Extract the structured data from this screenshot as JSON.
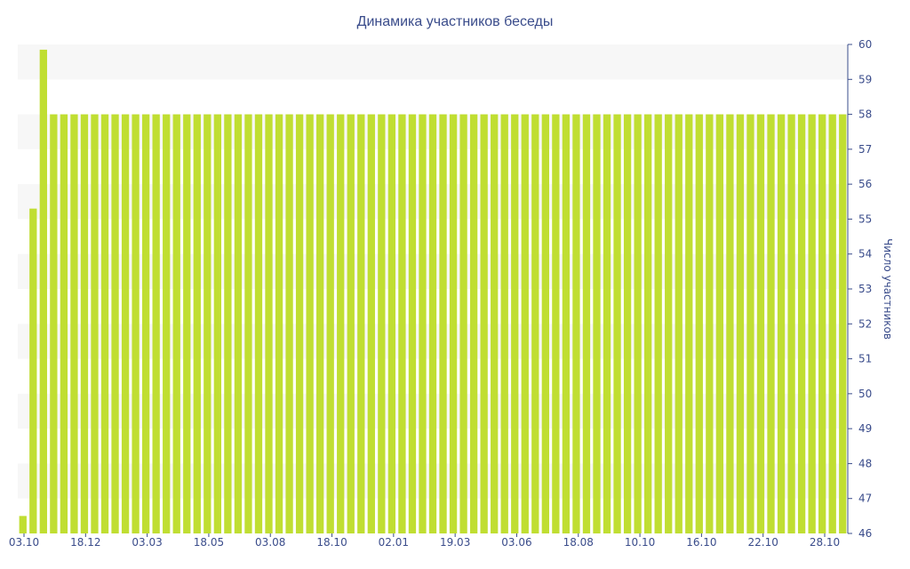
{
  "chart_data": {
    "type": "bar",
    "title": "Динамика участников беседы",
    "ylabel": "Число участников",
    "xlabel": "",
    "ylim": [
      46,
      60
    ],
    "y_ticks": [
      46,
      47,
      48,
      49,
      50,
      51,
      52,
      53,
      54,
      55,
      56,
      57,
      58,
      59,
      60
    ],
    "x_tick_labels": [
      "03.10",
      "18.12",
      "03.03",
      "18.05",
      "03.08",
      "18.10",
      "02.01",
      "19.03",
      "03.06",
      "18.08",
      "10.10",
      "16.10",
      "22.10",
      "28.10"
    ],
    "grid": "alternating horizontal bands",
    "y_axis_position": "right",
    "bar_color": "#c0de32",
    "values": [
      46.5,
      55.3,
      59.85,
      58,
      58,
      58,
      58,
      58,
      58,
      58,
      58,
      58,
      58,
      58,
      58,
      58,
      58,
      58,
      58,
      58,
      58,
      58,
      58,
      58,
      58,
      58,
      58,
      58,
      58,
      58,
      58,
      58,
      58,
      58,
      58,
      58,
      58,
      58,
      58,
      58,
      58,
      58,
      58,
      58,
      58,
      58,
      58,
      58,
      58,
      58,
      58,
      58,
      58,
      58,
      58,
      58,
      58,
      58,
      58,
      58,
      58,
      58,
      58,
      58,
      58,
      58,
      58,
      58,
      58,
      58,
      58,
      58,
      58,
      58,
      58,
      58,
      58,
      58,
      58,
      58,
      58
    ]
  }
}
